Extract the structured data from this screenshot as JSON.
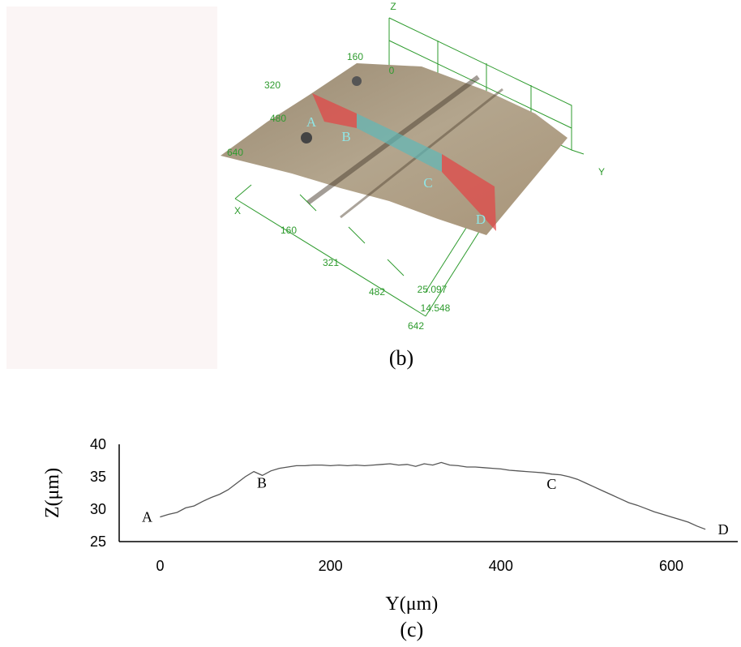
{
  "panel_b": {
    "axis_labels": {
      "z": "Z",
      "x": "X",
      "y": "Y"
    },
    "y_ticks": [
      "160",
      "0"
    ],
    "x_ticks_top": [
      "320",
      "480",
      "640"
    ],
    "x_ticks_bottom": [
      "160",
      "321",
      "482",
      "642"
    ],
    "z_ticks": [
      "25.097",
      "14.548"
    ],
    "points": [
      "A",
      "B",
      "C",
      "D"
    ],
    "caption": "(b)"
  },
  "chart_data": {
    "type": "line",
    "caption": "(c)",
    "xlabel": "Y(μm)",
    "ylabel": "Z(μm)",
    "color": "#555555",
    "x": [
      0,
      10,
      20,
      30,
      40,
      50,
      60,
      70,
      80,
      90,
      100,
      110,
      120,
      130,
      140,
      150,
      160,
      170,
      180,
      190,
      200,
      210,
      220,
      230,
      240,
      250,
      260,
      270,
      280,
      290,
      300,
      310,
      320,
      330,
      340,
      350,
      360,
      370,
      380,
      390,
      400,
      410,
      420,
      430,
      440,
      450,
      460,
      470,
      480,
      490,
      500,
      510,
      520,
      530,
      540,
      550,
      560,
      570,
      580,
      590,
      600,
      610,
      620,
      630,
      640
    ],
    "values": [
      28.8,
      29.2,
      29.5,
      30.2,
      30.5,
      31.2,
      31.8,
      32.3,
      33.0,
      34.0,
      35.0,
      35.8,
      35.2,
      35.9,
      36.3,
      36.5,
      36.7,
      36.7,
      36.8,
      36.8,
      36.7,
      36.8,
      36.7,
      36.8,
      36.7,
      36.8,
      36.9,
      37.0,
      36.8,
      36.9,
      36.6,
      37.0,
      36.8,
      37.2,
      36.8,
      36.7,
      36.5,
      36.5,
      36.4,
      36.3,
      36.2,
      36.0,
      35.9,
      35.8,
      35.7,
      35.6,
      35.4,
      35.3,
      35.0,
      34.6,
      34.0,
      33.4,
      32.8,
      32.2,
      31.6,
      31.0,
      30.6,
      30.1,
      29.6,
      29.2,
      28.8,
      28.4,
      28.0,
      27.4,
      26.9
    ],
    "annotations": [
      {
        "text": "A",
        "x": 0
      },
      {
        "text": "B",
        "x": 110
      },
      {
        "text": "C",
        "x": 450
      },
      {
        "text": "D",
        "x": 640
      }
    ],
    "xlim": [
      -48,
      678
    ],
    "ylim": [
      25,
      40
    ],
    "xticks": [
      0,
      200,
      400,
      600
    ],
    "yticks": [
      25,
      30,
      35,
      40
    ]
  }
}
